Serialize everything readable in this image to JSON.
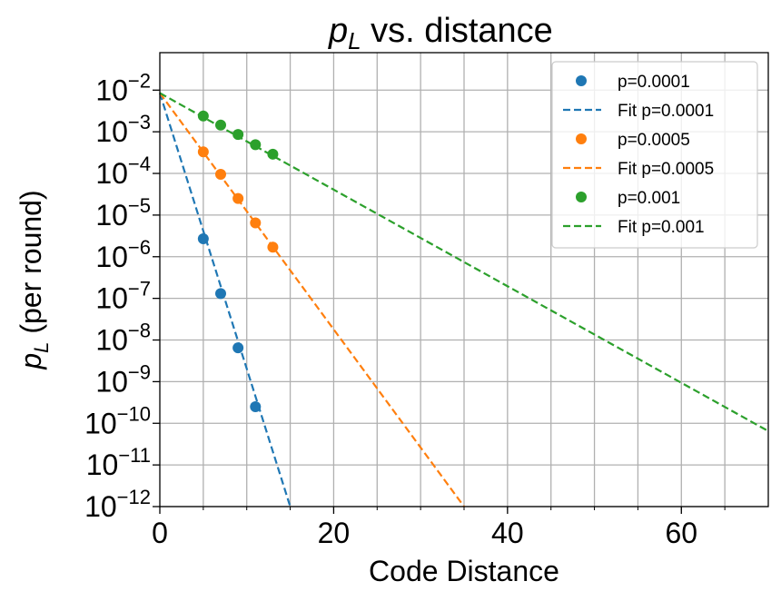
{
  "chart_data": {
    "type": "scatter",
    "title_main": "p",
    "title_sub": "L",
    "title_rest": " vs. distance",
    "xlabel": "Code Distance",
    "ylabel_main": "p",
    "ylabel_sub": "L",
    "ylabel_rest": " (per round)",
    "xlim": [
      0,
      70
    ],
    "ylim_exp": [
      -12,
      -1.1
    ],
    "xticks": [
      0,
      20,
      40,
      60
    ],
    "xtick_labels": [
      "0",
      "20",
      "40",
      "60"
    ],
    "yticks_exp": [
      -2,
      -3,
      -4,
      -5,
      -6,
      -7,
      -8,
      -9,
      -10,
      -11,
      -12
    ],
    "ytick_base": "10",
    "ytick_exponents": [
      "−2",
      "−3",
      "−4",
      "−5",
      "−6",
      "−7",
      "−8",
      "−9",
      "−10",
      "−11",
      "−12"
    ],
    "grid": true,
    "legend_position": "top-right",
    "series": [
      {
        "name": "p=0.0001",
        "fit_name": "Fit p=0.0001",
        "color": "#1f77b4",
        "x": [
          5,
          7,
          9,
          11
        ],
        "y": [
          2.7e-06,
          1.3e-07,
          6.5e-09,
          2.5e-10
        ],
        "fit_start": [
          0,
          0.0085
        ],
        "fit_end": [
          15,
          1e-12
        ]
      },
      {
        "name": "p=0.0005",
        "fit_name": "Fit p=0.0005",
        "color": "#ff7f0e",
        "x": [
          5,
          7,
          9,
          11,
          13
        ],
        "y": [
          0.00033,
          9.5e-05,
          2.5e-05,
          6.5e-06,
          1.7e-06
        ],
        "fit_start": [
          0,
          0.0085
        ],
        "fit_end": [
          35,
          1e-12
        ]
      },
      {
        "name": "p=0.001",
        "fit_name": "Fit p=0.001",
        "color": "#2ca02c",
        "x": [
          5,
          7,
          9,
          11,
          13
        ],
        "y": [
          0.0024,
          0.00145,
          0.00086,
          0.00049,
          0.00029
        ],
        "fit_start": [
          0,
          0.0085
        ],
        "fit_end": [
          70,
          6.5e-11
        ]
      }
    ]
  }
}
